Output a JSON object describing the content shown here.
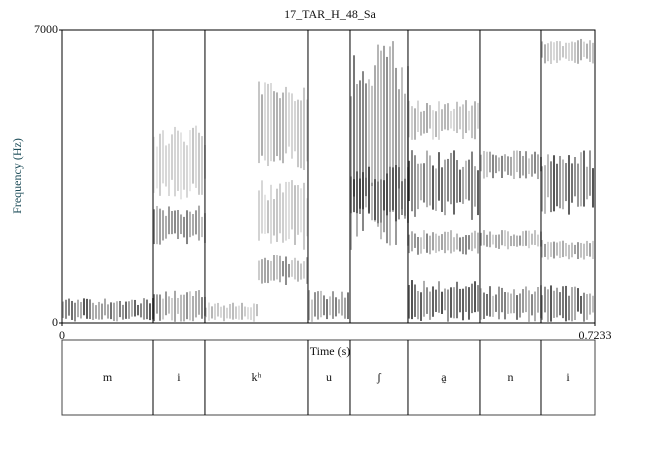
{
  "chart_data": {
    "type": "spectrogram",
    "title": "17_TAR_H_48_Sa",
    "xlabel": "Time (s)",
    "ylabel": "Frequency (Hz)",
    "xlim": [
      0,
      0.7233
    ],
    "ylim": [
      0,
      7000
    ],
    "xticks": [
      0,
      0.7233
    ],
    "yticks": [
      0,
      7000
    ],
    "tier": {
      "boundaries": [
        0.1235,
        0.194,
        0.3338,
        0.3908,
        0.4695,
        0.5672,
        0.65
      ],
      "labels": [
        "m",
        "i",
        "kʰ",
        "u",
        "ʃ",
        "a̰",
        "n",
        "i"
      ]
    }
  }
}
